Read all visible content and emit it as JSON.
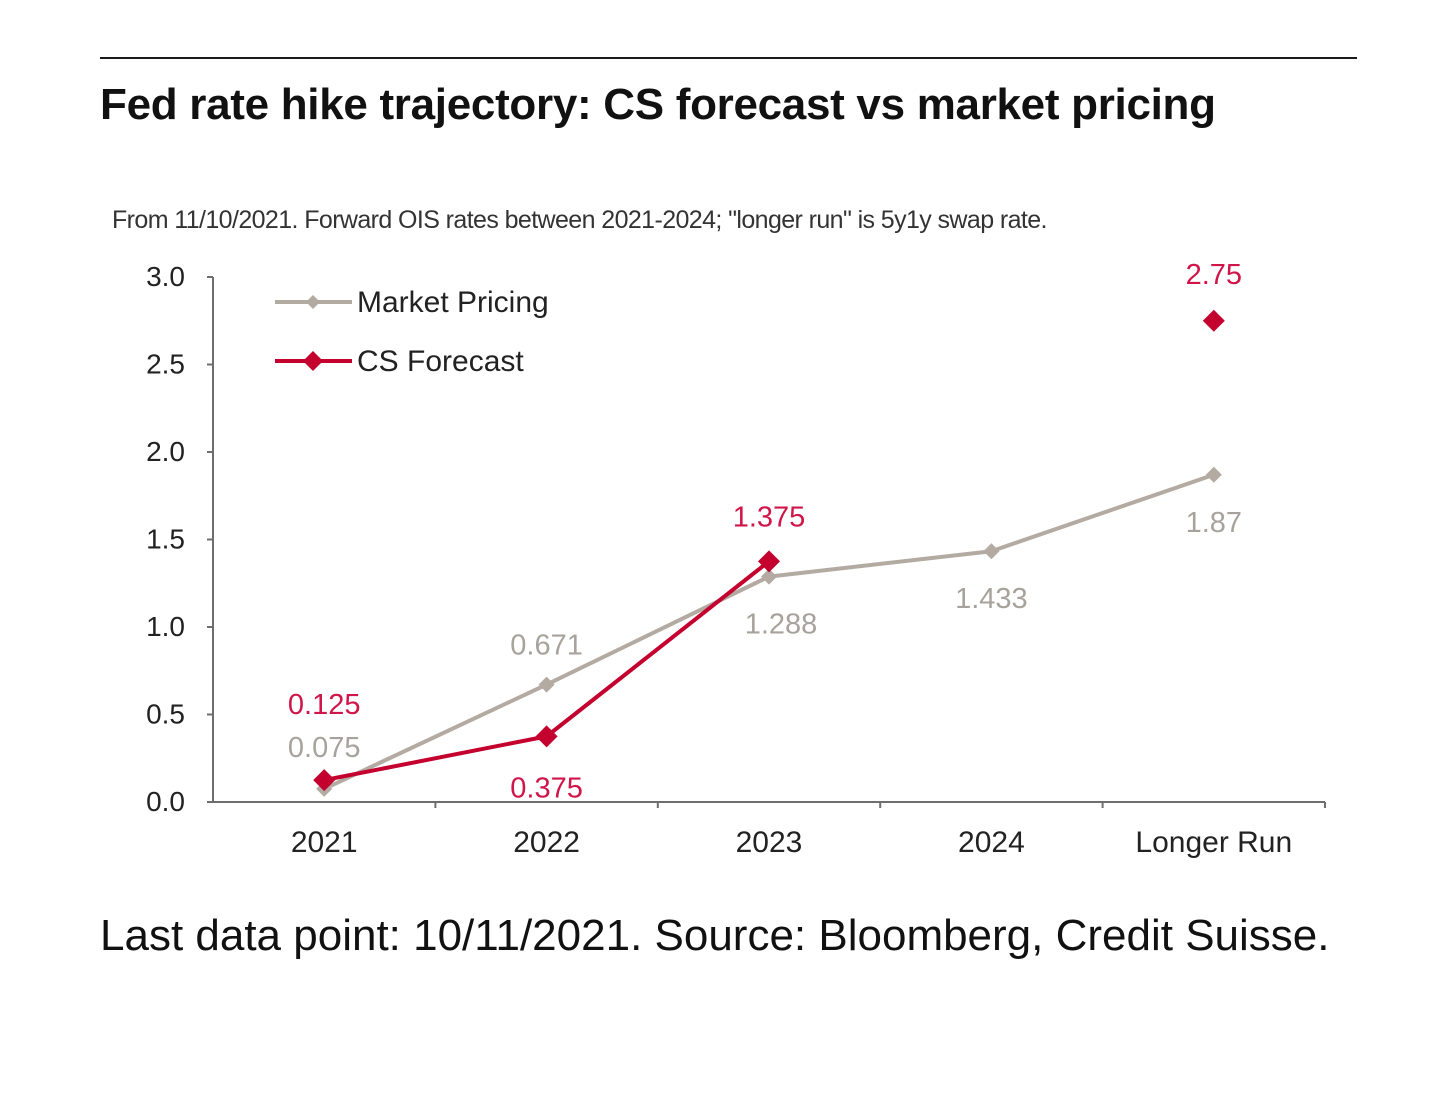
{
  "header": {
    "title": "Fed rate hike trajectory: CS forecast vs market pricing"
  },
  "caption": "Last data point: 10/11/2021. Source: Bloomberg, Credit Suisse.",
  "chart_data": {
    "type": "line",
    "subtitle": "From 11/10/2021. Forward OIS rates between 2021-2024; \"longer run\" is 5y1y swap rate.",
    "categories": [
      "2021",
      "2022",
      "2023",
      "2024",
      "Longer Run"
    ],
    "ylim": [
      0,
      3.0
    ],
    "yticks": [
      "0.0",
      "0.5",
      "1.0",
      "1.5",
      "2.0",
      "2.5",
      "3.0"
    ],
    "xlabel": "",
    "ylabel": "",
    "legend_position": "top-left",
    "grid": false,
    "series": [
      {
        "name": "Market Pricing",
        "color": "#b3aaa2",
        "label_color": "#a8a29d",
        "values": [
          0.075,
          0.671,
          1.288,
          1.433,
          1.87
        ],
        "labels": [
          "0.075",
          "0.671",
          "1.288",
          "1.433",
          "1.87"
        ],
        "connected": [
          true,
          true,
          true,
          true,
          true
        ]
      },
      {
        "name": "CS Forecast",
        "color": "#c4002f",
        "label_color": "#d0154a",
        "values": [
          0.125,
          0.375,
          1.375,
          null,
          2.75
        ],
        "labels": [
          "0.125",
          "0.375",
          "1.375",
          "",
          "2.75"
        ],
        "connected": [
          true,
          true,
          true,
          false,
          false
        ]
      }
    ]
  }
}
